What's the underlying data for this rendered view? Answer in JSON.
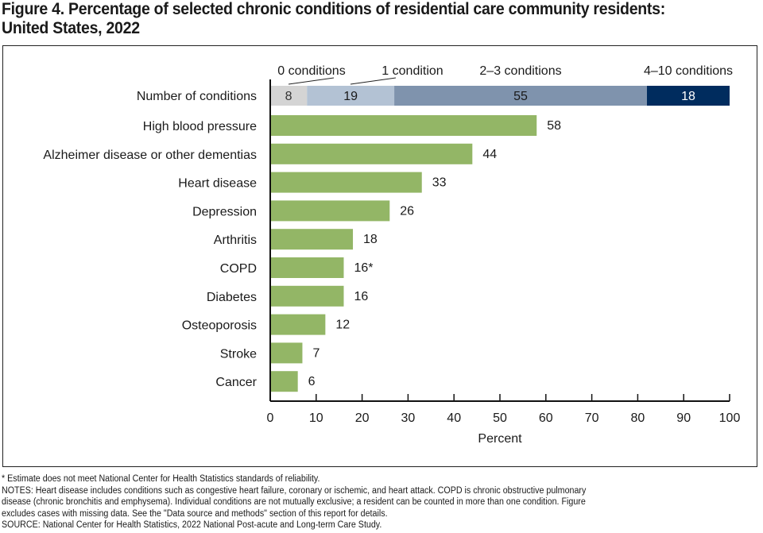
{
  "title_line1": "Figure 4. Percentage of selected chronic conditions of residential care community residents:",
  "title_line2": "United States, 2022",
  "chart_data": {
    "type": "bar",
    "orientation": "horizontal",
    "xlabel": "Percent",
    "xlim": [
      0,
      100
    ],
    "xticks": [
      0,
      10,
      20,
      30,
      40,
      50,
      60,
      70,
      80,
      90,
      100
    ],
    "stacked_row": {
      "label": "Number of conditions",
      "segments": [
        {
          "name": "0 conditions",
          "value": 8,
          "color": "#d4d4d4",
          "text_color": "#333333"
        },
        {
          "name": "1 condition",
          "value": 19,
          "color": "#b3c2d4",
          "text_color": "#1a1a1a"
        },
        {
          "name": "2–3 conditions",
          "value": 55,
          "color": "#7f93ad",
          "text_color": "#1a1a1a"
        },
        {
          "name": "4–10 conditions",
          "value": 18,
          "color": "#002c5e",
          "text_color": "#ffffff"
        }
      ]
    },
    "categories": [
      "High blood pressure",
      "Alzheimer disease or other dementias",
      "Heart disease",
      "Depression",
      "Arthritis",
      "COPD",
      "Diabetes",
      "Osteoporosis",
      "Stroke",
      "Cancer"
    ],
    "values": [
      58,
      44,
      33,
      26,
      18,
      16,
      16,
      12,
      7,
      6
    ],
    "data_labels": [
      "58",
      "44",
      "33",
      "26",
      "18",
      "16*",
      "16",
      "12",
      "7",
      "6"
    ],
    "bar_color": "#93b666"
  },
  "notes": {
    "footnote": "* Estimate does not meet National Center for Health Statistics standards of reliability.",
    "notes_line1": "NOTES: Heart disease includes conditions such as congestive heart failure, coronary or ischemic, and heart attack. COPD is chronic obstructive pulmonary",
    "notes_line2": "disease (chronic bronchitis and emphysema). Individual conditions are not mutually exclusive; a resident can be counted in more than one condition. Figure",
    "notes_line3": "excludes cases with missing data. See the \"Data source and methods\" section of this report for details.",
    "source": "SOURCE: National Center for Health Statistics, 2022 National Post-acute and Long-term Care Study."
  }
}
